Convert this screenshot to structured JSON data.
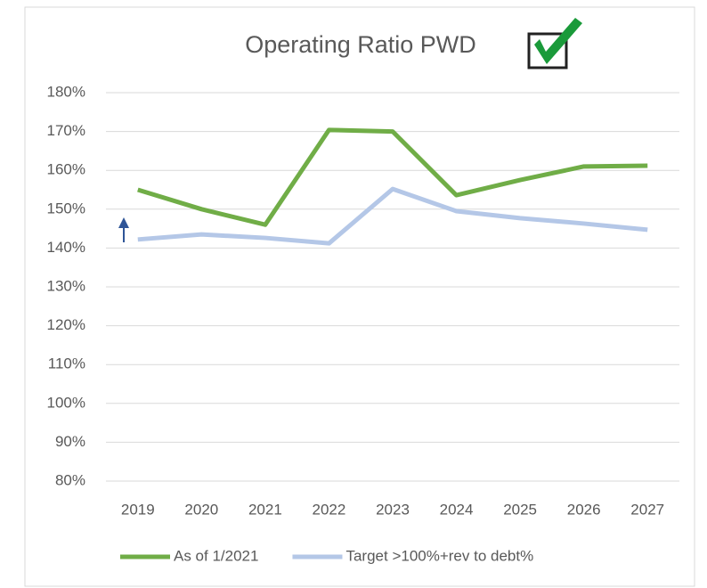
{
  "chart_data": {
    "type": "line",
    "title": "Operating Ratio PWD",
    "categories": [
      "2019",
      "2020",
      "2021",
      "2022",
      "2023",
      "2024",
      "2025",
      "2026",
      "2027"
    ],
    "series": [
      {
        "name": "As of 1/2021",
        "color": "#70ad47",
        "values": [
          155,
          150,
          146,
          170.4,
          170,
          153.6,
          157.5,
          161,
          161.2
        ]
      },
      {
        "name": "Target >100%+rev to debt%",
        "color": "#b4c7e7",
        "values": [
          142.2,
          143.5,
          142.6,
          141.2,
          155.2,
          149.5,
          147.7,
          146.3,
          144.7
        ]
      }
    ],
    "ylim": [
      80,
      180
    ],
    "yticks": [
      {
        "value": 80,
        "label": "80%"
      },
      {
        "value": 90,
        "label": "90%"
      },
      {
        "value": 100,
        "label": "100%"
      },
      {
        "value": 110,
        "label": "110%"
      },
      {
        "value": 120,
        "label": "120%"
      },
      {
        "value": 130,
        "label": "130%"
      },
      {
        "value": 140,
        "label": "140%"
      },
      {
        "value": 150,
        "label": "150%"
      },
      {
        "value": 160,
        "label": "160%"
      },
      {
        "value": 170,
        "label": "170%"
      },
      {
        "value": 180,
        "label": "180%"
      }
    ],
    "grid": true,
    "legend": "bottom"
  }
}
